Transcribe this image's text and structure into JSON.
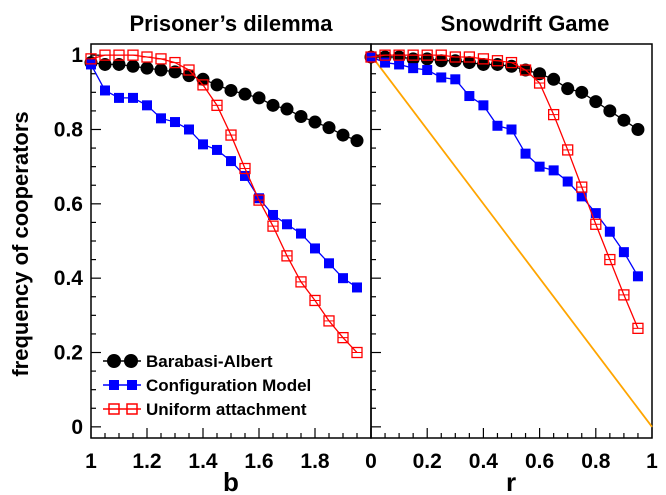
{
  "chart_data": [
    {
      "type": "line",
      "title": "Prisoner’s dilemma",
      "xlabel": "b",
      "ylabel": "frequency of cooperators",
      "xlim": [
        1,
        2
      ],
      "ylim": [
        -0.03,
        1.03
      ],
      "x_ticks": [
        "1",
        "1.2",
        "1.4",
        "1.6",
        "1.8"
      ],
      "y_ticks": [
        "0",
        "0.2",
        "0.4",
        "0.6",
        "0.8",
        "1"
      ],
      "x_tick_values": [
        1,
        1.2,
        1.4,
        1.6,
        1.8
      ],
      "y_tick_values": [
        0,
        0.2,
        0.4,
        0.6,
        0.8,
        1
      ],
      "grid": false,
      "legend": "bottom-left",
      "x": [
        1.0,
        1.05,
        1.1,
        1.15,
        1.2,
        1.25,
        1.3,
        1.35,
        1.4,
        1.45,
        1.5,
        1.55,
        1.6,
        1.65,
        1.7,
        1.75,
        1.8,
        1.85,
        1.9,
        1.95
      ],
      "series": [
        {
          "name": "Barabasi-Albert",
          "color": "#000000",
          "marker": "filled-circle",
          "values": [
            0.98,
            0.975,
            0.975,
            0.97,
            0.965,
            0.96,
            0.955,
            0.945,
            0.935,
            0.92,
            0.905,
            0.895,
            0.885,
            0.865,
            0.855,
            0.835,
            0.82,
            0.805,
            0.785,
            0.77
          ]
        },
        {
          "name": "Configuration Model",
          "color": "#0000ff",
          "marker": "filled-square",
          "values": [
            0.975,
            0.905,
            0.885,
            0.885,
            0.865,
            0.83,
            0.82,
            0.8,
            0.76,
            0.745,
            0.715,
            0.675,
            0.615,
            0.57,
            0.545,
            0.52,
            0.48,
            0.44,
            0.4,
            0.375
          ]
        },
        {
          "name": "Uniform attachment",
          "color": "#ff0000",
          "marker": "open-square",
          "values": [
            0.99,
            1.0,
            1.0,
            1.0,
            0.995,
            0.99,
            0.98,
            0.96,
            0.92,
            0.865,
            0.785,
            0.695,
            0.61,
            0.54,
            0.46,
            0.39,
            0.34,
            0.285,
            0.24,
            0.2
          ]
        }
      ]
    },
    {
      "type": "line",
      "title": "Snowdrift Game",
      "xlabel": "r",
      "ylabel": "",
      "xlim": [
        0,
        1
      ],
      "ylim": [
        -0.03,
        1.03
      ],
      "x_ticks": [
        "0",
        "0.2",
        "0.4",
        "0.6",
        "0.8",
        "1"
      ],
      "x_tick_values": [
        0,
        0.2,
        0.4,
        0.6,
        0.8,
        1
      ],
      "grid": false,
      "reference_line": {
        "color": "#ffa500",
        "from": [
          0,
          1
        ],
        "to": [
          1,
          0
        ]
      },
      "x": [
        0.0,
        0.05,
        0.1,
        0.15,
        0.2,
        0.25,
        0.3,
        0.35,
        0.4,
        0.45,
        0.5,
        0.55,
        0.6,
        0.65,
        0.7,
        0.75,
        0.8,
        0.85,
        0.9,
        0.95
      ],
      "series": [
        {
          "name": "Barabasi-Albert",
          "color": "#000000",
          "marker": "filled-circle",
          "values": [
            0.995,
            0.995,
            0.995,
            0.99,
            0.99,
            0.985,
            0.985,
            0.98,
            0.975,
            0.975,
            0.97,
            0.96,
            0.95,
            0.935,
            0.91,
            0.9,
            0.875,
            0.85,
            0.825,
            0.8
          ]
        },
        {
          "name": "Configuration Model",
          "color": "#0000ff",
          "marker": "filled-square",
          "values": [
            0.995,
            0.98,
            0.975,
            0.965,
            0.96,
            0.94,
            0.935,
            0.89,
            0.865,
            0.81,
            0.8,
            0.735,
            0.7,
            0.69,
            0.66,
            0.62,
            0.575,
            0.525,
            0.47,
            0.405
          ]
        },
        {
          "name": "Uniform attachment",
          "color": "#ff0000",
          "marker": "open-square",
          "values": [
            0.995,
            1.0,
            1.0,
            1.0,
            1.0,
            1.0,
            0.995,
            0.995,
            0.99,
            0.985,
            0.98,
            0.96,
            0.925,
            0.84,
            0.745,
            0.645,
            0.545,
            0.45,
            0.355,
            0.265
          ]
        }
      ]
    }
  ]
}
